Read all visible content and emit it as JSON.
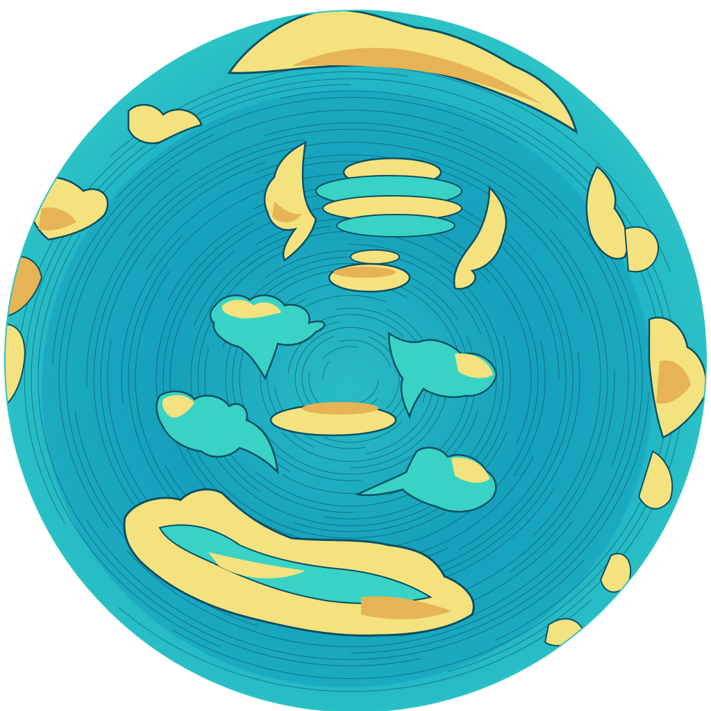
{
  "scene": {
    "kind": "stylized cartoon sky warped into a circular swirl (fisheye / little-planet effect)",
    "palette": {
      "background": "#ffffff",
      "outer_sky": "#2fc4c4",
      "inner_sky": "#1aa8c0",
      "deep_center": "#0f93b3",
      "cloud_highlight": "#f3e27e",
      "cloud_shadow": "#e6b455",
      "cloud_body": "#39d3c5",
      "line_ink": "#0b4f63"
    },
    "elements": [
      "circular-sky-disc",
      "swirl-lines",
      "outer-cloud-ring",
      "upper-cloud-stack",
      "center-cloud-puffs",
      "lower-cloud-bank"
    ]
  }
}
